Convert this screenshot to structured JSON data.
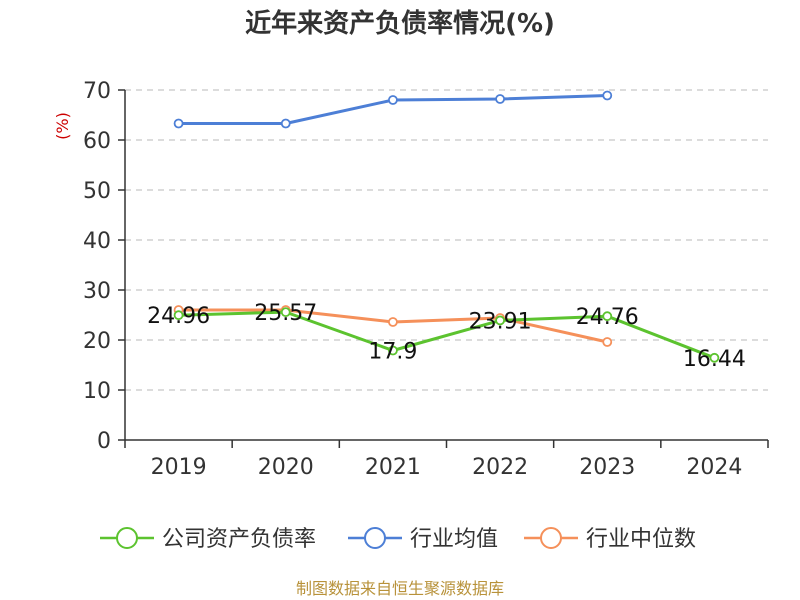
{
  "chart_data": {
    "type": "line",
    "title": "近年来资产负债率情况(%)",
    "ylabel": "(%)",
    "xlabel": "",
    "categories": [
      "2019",
      "2020",
      "2021",
      "2022",
      "2023",
      "2024"
    ],
    "ylim": [
      0,
      70
    ],
    "yticks": [
      0,
      10,
      20,
      30,
      40,
      50,
      60,
      70
    ],
    "grid": true,
    "legend_position": "bottom",
    "series": [
      {
        "name": "公司资产负债率",
        "color": "#5cc32f",
        "values": [
          24.96,
          25.57,
          17.9,
          23.91,
          24.76,
          16.44
        ],
        "data_labels": [
          "24.96",
          "25.57",
          "17.9",
          "23.91",
          "24.76",
          "16.44"
        ]
      },
      {
        "name": "行业均值",
        "color": "#4d7fd6",
        "values": [
          63.3,
          63.3,
          68.0,
          68.2,
          68.9,
          null
        ]
      },
      {
        "name": "行业中位数",
        "color": "#f5905a",
        "values": [
          26.0,
          26.0,
          23.6,
          24.4,
          19.6,
          null
        ]
      }
    ]
  },
  "source_text": "制图数据来自恒生聚源数据库"
}
